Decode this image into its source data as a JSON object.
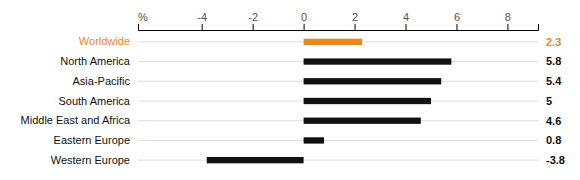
{
  "chart_data": {
    "type": "bar",
    "orientation": "horizontal",
    "categories": [
      "Worldwide",
      "North America",
      "Asia-Pacific",
      "South America",
      "Middle East and Africa",
      "Eastern Europe",
      "Western Europe"
    ],
    "values": [
      2.3,
      5.8,
      5.4,
      5.0,
      4.6,
      0.8,
      -3.8
    ],
    "colors": [
      "#e8871e",
      "#111111",
      "#111111",
      "#111111",
      "#111111",
      "#111111",
      "#111111"
    ],
    "xlabel": "%",
    "xlim": [
      -6.5,
      9.2
    ],
    "xticks": [
      -4,
      -2,
      0,
      2,
      4,
      6,
      8
    ],
    "grid": true,
    "data_labels": true
  }
}
